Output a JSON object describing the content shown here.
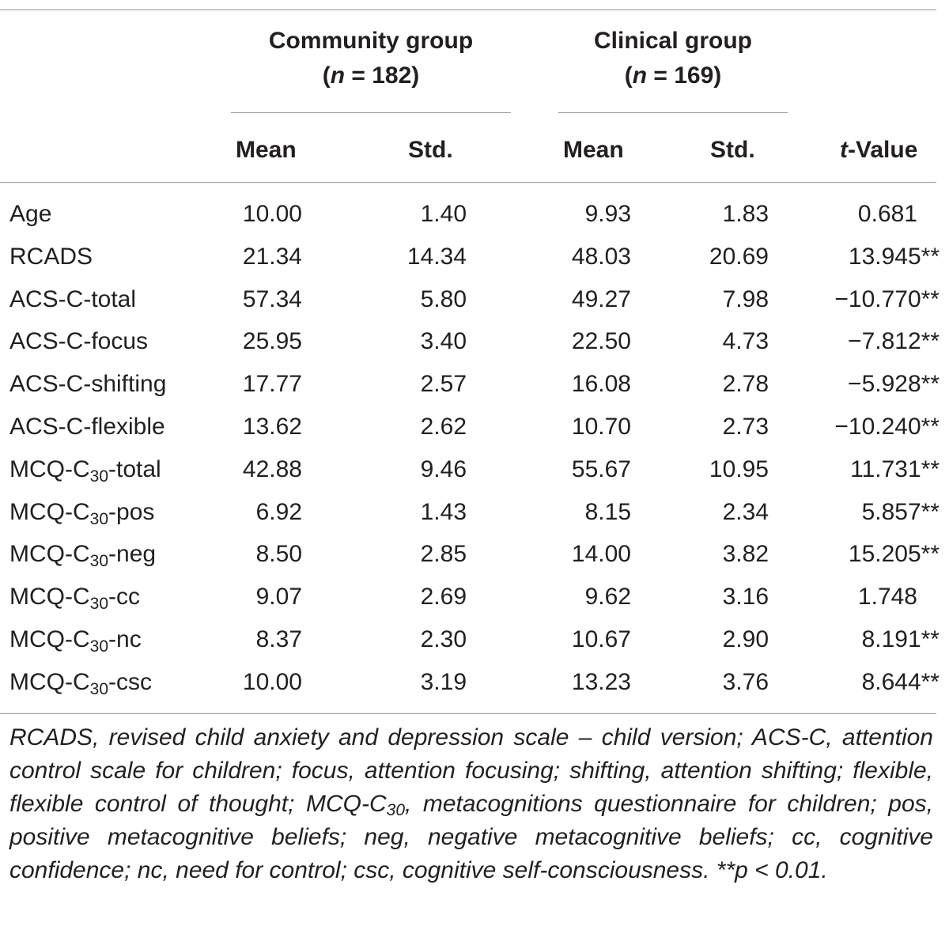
{
  "table": {
    "groups": [
      {
        "name": "Community group",
        "n_prefix": "(",
        "n_label": "n",
        "n_value": " = 182)"
      },
      {
        "name": "Clinical group",
        "n_prefix": "(",
        "n_label": "n",
        "n_value": " = 169)"
      }
    ],
    "columns": {
      "mean1": "Mean",
      "std1": "Std.",
      "mean2": "Mean",
      "std2": "Std.",
      "t_italic": "t",
      "t_rest": "-Value"
    },
    "rows": [
      {
        "label": "Age",
        "sub": "",
        "suffix": "",
        "m1": "10.00",
        "s1": "1.40",
        "m2": "9.93",
        "s2": "1.83",
        "t": "0.681"
      },
      {
        "label": "RCADS",
        "sub": "",
        "suffix": "",
        "m1": "21.34",
        "s1": "14.34",
        "m2": "48.03",
        "s2": "20.69",
        "t": "13.945**"
      },
      {
        "label": "ACS-C-total",
        "sub": "",
        "suffix": "",
        "m1": "57.34",
        "s1": "5.80",
        "m2": "49.27",
        "s2": "7.98",
        "t": "−10.770**"
      },
      {
        "label": "ACS-C-focus",
        "sub": "",
        "suffix": "",
        "m1": "25.95",
        "s1": "3.40",
        "m2": "22.50",
        "s2": "4.73",
        "t": "−7.812**"
      },
      {
        "label": "ACS-C-shifting",
        "sub": "",
        "suffix": "",
        "m1": "17.77",
        "s1": "2.57",
        "m2": "16.08",
        "s2": "2.78",
        "t": "−5.928**"
      },
      {
        "label": "ACS-C-flexible",
        "sub": "",
        "suffix": "",
        "m1": "13.62",
        "s1": "2.62",
        "m2": "10.70",
        "s2": "2.73",
        "t": "−10.240**"
      },
      {
        "label": "MCQ-C",
        "sub": "30",
        "suffix": "-total",
        "m1": "42.88",
        "s1": "9.46",
        "m2": "55.67",
        "s2": "10.95",
        "t": "11.731**"
      },
      {
        "label": "MCQ-C",
        "sub": "30",
        "suffix": "-pos",
        "m1": "6.92",
        "s1": "1.43",
        "m2": "8.15",
        "s2": "2.34",
        "t": "5.857**"
      },
      {
        "label": "MCQ-C",
        "sub": "30",
        "suffix": "-neg",
        "m1": "8.50",
        "s1": "2.85",
        "m2": "14.00",
        "s2": "3.82",
        "t": "15.205**"
      },
      {
        "label": "MCQ-C",
        "sub": "30",
        "suffix": "-cc",
        "m1": "9.07",
        "s1": "2.69",
        "m2": "9.62",
        "s2": "3.16",
        "t": "1.748"
      },
      {
        "label": "MCQ-C",
        "sub": "30",
        "suffix": "-nc",
        "m1": "8.37",
        "s1": "2.30",
        "m2": "10.67",
        "s2": "2.90",
        "t": "8.191**"
      },
      {
        "label": "MCQ-C",
        "sub": "30",
        "suffix": "-csc",
        "m1": "10.00",
        "s1": "3.19",
        "m2": "13.23",
        "s2": "3.76",
        "t": "8.644**"
      }
    ]
  },
  "note": {
    "part1": "RCADS, revised child anxiety and depression scale – child version; ACS-C, attention control scale for children; focus, attention focusing; shifting, attention shifting; flexible, flexible control of thought; MCQ-C",
    "sub": "30",
    "part2": ", metacognitions questionnaire for children; pos, positive metacognitive beliefs; neg, negative metacognitive beliefs; cc, cognitive confidence; nc, need for control; csc, cognitive self-consciousness. **p < 0.01."
  }
}
